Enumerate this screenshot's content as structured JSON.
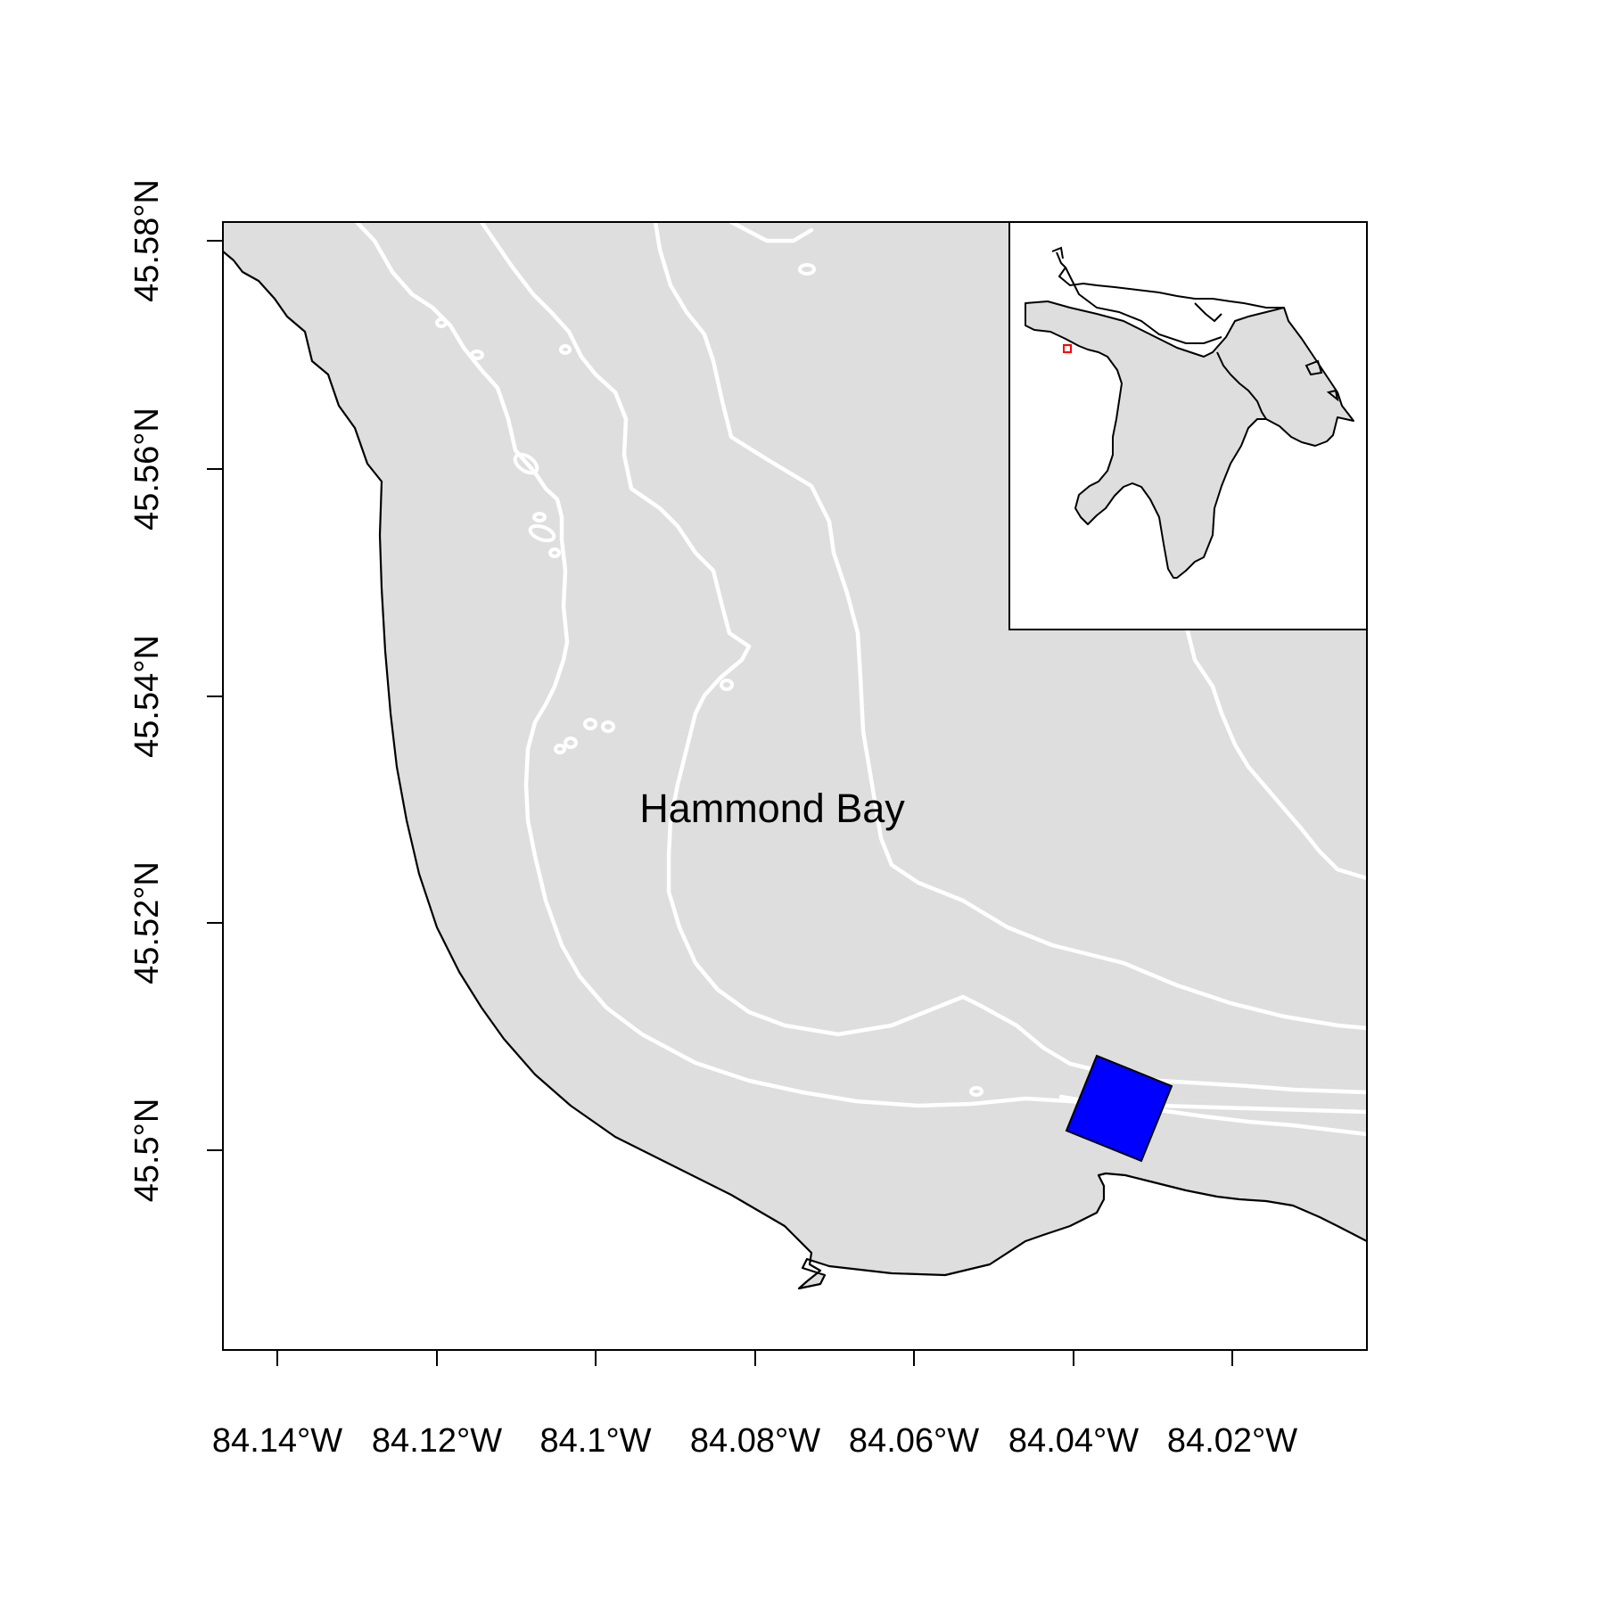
{
  "map": {
    "place_label": "Hammond Bay",
    "water_color": "#DEDEDE",
    "site_color": "#0000FF",
    "inset_marker_color": "#FF0000",
    "x_axis": {
      "ticks": [
        "84.14°W",
        "84.12°W",
        "84.1°W",
        "84.08°W",
        "84.06°W",
        "84.04°W",
        "84.02°W"
      ]
    },
    "y_axis": {
      "ticks": [
        "45.5°N",
        "45.52°N",
        "45.54°N",
        "45.56°N",
        "45.58°N"
      ]
    },
    "inset": {
      "description_icon": "lake-huron-outline-icon"
    }
  }
}
